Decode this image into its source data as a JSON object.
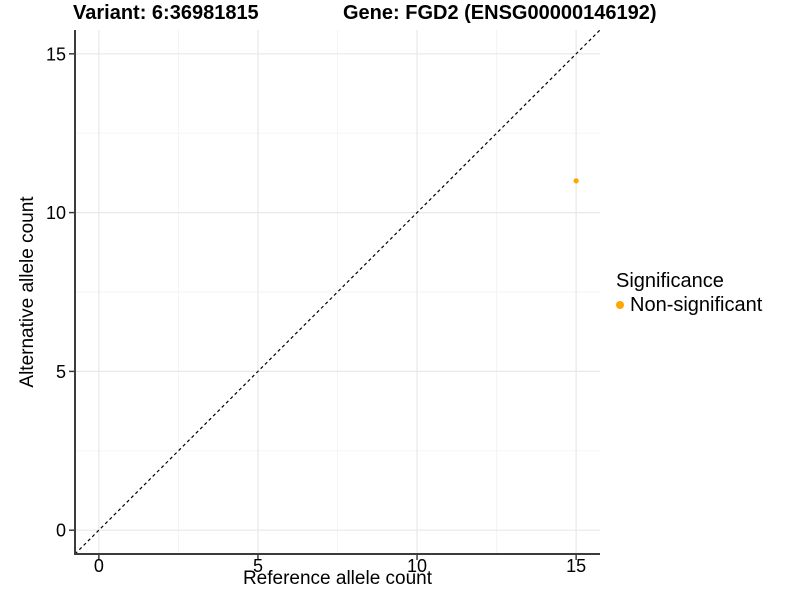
{
  "chart_data": {
    "type": "scatter",
    "titles": {
      "left": "Variant: 6:36981815",
      "right": "Gene: FGD2 (ENSG00000146192)"
    },
    "xlabel": "Reference allele count",
    "ylabel": "Alternative allele count",
    "xlim": [
      -0.75,
      15.75
    ],
    "ylim": [
      -0.75,
      15.75
    ],
    "x_ticks": [
      0,
      5,
      10,
      15
    ],
    "y_ticks": [
      0,
      5,
      10,
      15
    ],
    "x_minor_gridlines": [
      2.5,
      7.5,
      12.5
    ],
    "y_minor_gridlines": [
      2.5,
      7.5,
      12.5
    ],
    "grid": "major+minor",
    "points": [
      {
        "x": 15,
        "y": 11,
        "significance": "Non-significant"
      }
    ],
    "identity_line": {
      "style": "dashed",
      "from": -0.75,
      "to": 15.75,
      "color": "#000000"
    },
    "legend": {
      "title": "Significance",
      "position": "right",
      "entries": [
        {
          "label": "Non-significant",
          "color": "#FFA500"
        }
      ]
    },
    "colors": {
      "point": "#FFA500",
      "axis_line": "#3C3C3C",
      "grid_major": "#E8E8E8",
      "grid_minor": "#F3F3F3",
      "text": "#000000",
      "background": "#FFFFFF"
    }
  }
}
